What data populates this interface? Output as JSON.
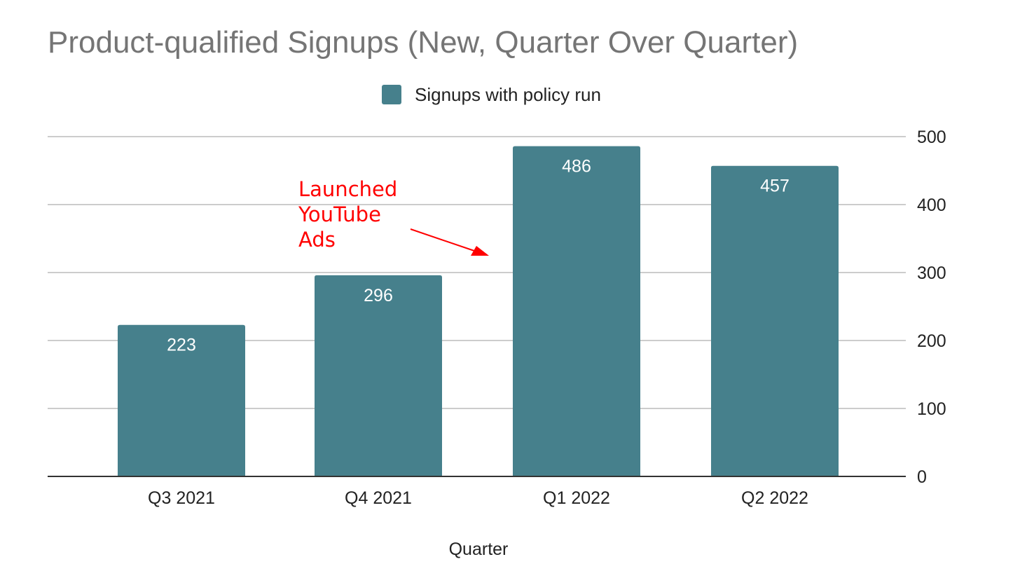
{
  "chart_data": {
    "type": "bar",
    "title": "Product-qualified Signups (New, Quarter Over Quarter)",
    "xlabel": "Quarter",
    "ylabel": "",
    "categories": [
      "Q3 2021",
      "Q4 2021",
      "Q1 2022",
      "Q2 2022"
    ],
    "series": [
      {
        "name": "Signups with policy run",
        "values": [
          223,
          296,
          486,
          457
        ],
        "color": "#46808c"
      }
    ],
    "data_labels": [
      "223",
      "296",
      "486",
      "457"
    ],
    "ylim": [
      0,
      500
    ],
    "yticks": [
      0,
      100,
      200,
      300,
      400,
      500
    ],
    "ytick_labels": [
      "0",
      "100",
      "200",
      "300",
      "400",
      "500"
    ],
    "y_axis_side": "right",
    "grid": true,
    "legend_position": "top-center",
    "annotation": {
      "lines": [
        "Launched",
        "YouTube",
        "Ads"
      ],
      "color": "#ff0000",
      "points_to": "Q1 2022"
    }
  }
}
